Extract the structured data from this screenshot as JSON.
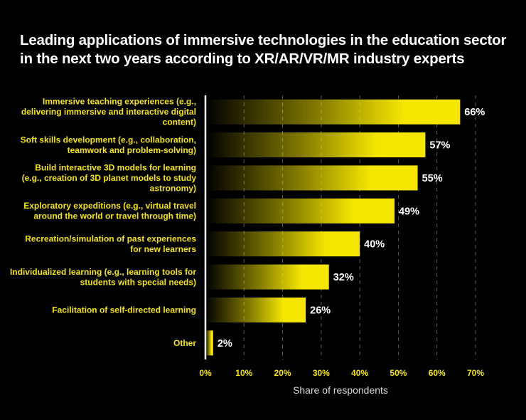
{
  "chart_data": {
    "type": "bar",
    "orientation": "horizontal",
    "title": "Leading applications of immersive technologies in the education sector in the next two years according to XR/AR/VR/MR industry experts",
    "xlabel": "Share of respondents",
    "ylabel": "",
    "xlim": [
      0,
      70
    ],
    "xticks": [
      0,
      10,
      20,
      30,
      40,
      50,
      60,
      70
    ],
    "xtick_labels": [
      "0%",
      "10%",
      "20%",
      "30%",
      "40%",
      "50%",
      "60%",
      "70%"
    ],
    "grid": "vertical dashed",
    "bar_color": "#f5e600",
    "background": "#000000",
    "categories": [
      [
        "Immersive teaching experiences (e.g.,",
        "delivering immersive and interactive digital",
        "content)"
      ],
      [
        "Soft skills development (e.g., collaboration,",
        "teamwork and problem-solving)"
      ],
      [
        "Build interactive 3D models for learning",
        "(e.g., creation of 3D planet models to study",
        "astronomy)"
      ],
      [
        "Exploratory expeditions (e.g., virtual travel",
        "around the world or travel through time)"
      ],
      [
        "Recreation/simulation of past experiences",
        "for new learners"
      ],
      [
        "Individualized learning (e.g., learning tools for",
        "students with special needs)"
      ],
      [
        "Facilitation of self-directed learning"
      ],
      [
        "Other"
      ]
    ],
    "values": [
      66,
      57,
      55,
      49,
      40,
      32,
      26,
      2
    ],
    "value_labels": [
      "66%",
      "57%",
      "55%",
      "49%",
      "40%",
      "32%",
      "26%",
      "2%"
    ]
  }
}
